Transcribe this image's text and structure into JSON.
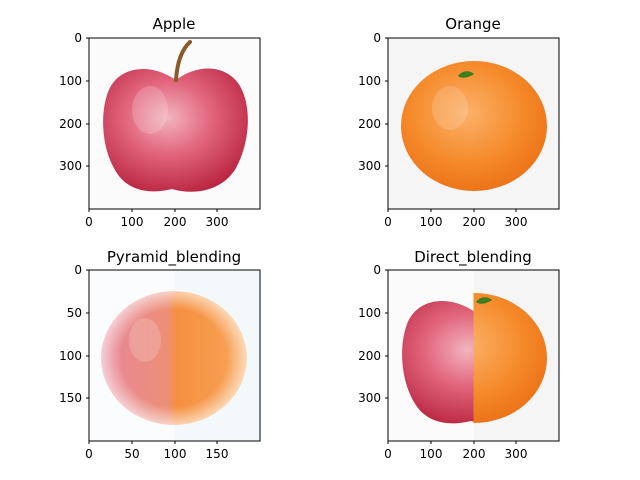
{
  "figure": {
    "panels": [
      {
        "title": "Apple",
        "image": "apple",
        "x_ticks": [
          "0",
          "100",
          "200",
          "300"
        ],
        "y_ticks": [
          "0",
          "100",
          "200",
          "300"
        ],
        "x_range": [
          0,
          400
        ],
        "y_range": [
          0,
          400
        ]
      },
      {
        "title": "Orange",
        "image": "orange",
        "x_ticks": [
          "0",
          "100",
          "200",
          "300"
        ],
        "y_ticks": [
          "0",
          "100",
          "200",
          "300"
        ],
        "x_range": [
          0,
          400
        ],
        "y_range": [
          0,
          400
        ]
      },
      {
        "title": "Pyramid_blending",
        "image": "pyramid-blend",
        "x_ticks": [
          "0",
          "50",
          "100",
          "150"
        ],
        "y_ticks": [
          "0",
          "50",
          "100",
          "150"
        ],
        "x_range": [
          0,
          200
        ],
        "y_range": [
          0,
          200
        ]
      },
      {
        "title": "Direct_blending",
        "image": "direct-blend",
        "x_ticks": [
          "0",
          "100",
          "200",
          "300"
        ],
        "y_ticks": [
          "0",
          "100",
          "200",
          "300"
        ],
        "x_range": [
          0,
          400
        ],
        "y_range": [
          0,
          400
        ]
      }
    ],
    "colors": {
      "apple_red": "#d8475f",
      "apple_light": "#f2b4bf",
      "orange": "#f57f22",
      "orange_light": "#fbb26a",
      "stem": "#8a5a2b",
      "leaf": "#3e7d1e",
      "bg_orange": "#f5f5f5"
    }
  }
}
